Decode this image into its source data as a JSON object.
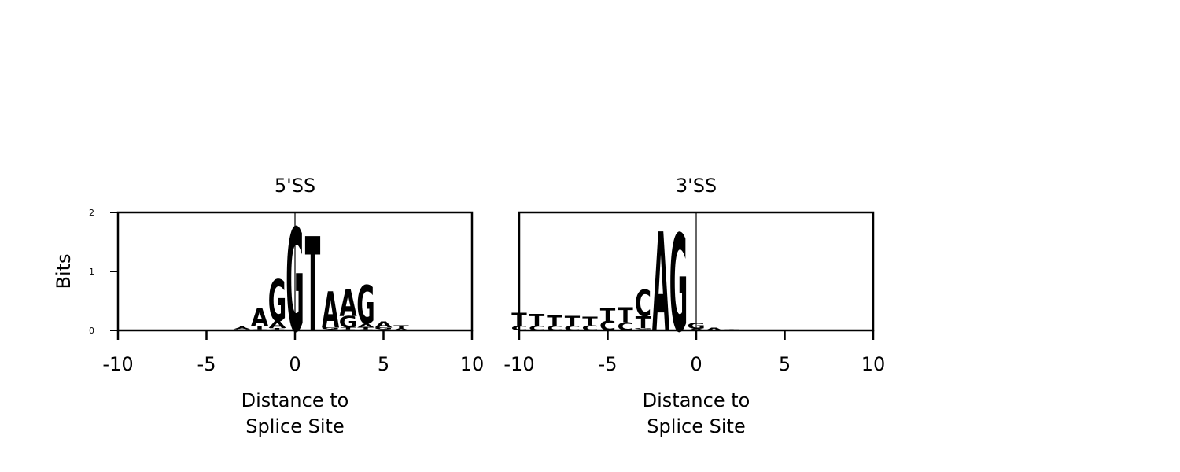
{
  "chart_data": [
    {
      "type": "sequence-logo",
      "title": "5'SS",
      "xlabel_lines": [
        "Distance to",
        "Splice Site"
      ],
      "ylabel": "Bits",
      "xlim": [
        -10,
        10
      ],
      "ylim": [
        0,
        2
      ],
      "xticks": [
        -10,
        -5,
        0,
        5,
        10
      ],
      "xtick_labels": [
        "-10",
        "-5",
        "0",
        "5",
        "10"
      ],
      "yticks": [
        0,
        1,
        2
      ],
      "ytick_labels": [
        "0",
        "1",
        "2"
      ],
      "splice_line_x": 0,
      "colors": {
        "A": "#2a7f5f",
        "C": "#2e5a94",
        "G": "#f4a830",
        "T": "#c0292f"
      },
      "positions": [
        {
          "x": -3,
          "stack": [
            [
              "C",
              0.02
            ],
            [
              "A",
              0.03
            ],
            [
              "T",
              0.03
            ]
          ]
        },
        {
          "x": -2,
          "stack": [
            [
              "G",
              0.02
            ],
            [
              "T",
              0.06
            ],
            [
              "A",
              0.3
            ]
          ]
        },
        {
          "x": -1,
          "stack": [
            [
              "C",
              0.02
            ],
            [
              "T",
              0.02
            ],
            [
              "A",
              0.12
            ],
            [
              "G",
              0.7
            ]
          ]
        },
        {
          "x": 0,
          "stack": [
            [
              "G",
              1.75
            ]
          ]
        },
        {
          "x": 1,
          "stack": [
            [
              "T",
              1.6
            ]
          ]
        },
        {
          "x": 2,
          "stack": [
            [
              "T",
              0.02
            ],
            [
              "G",
              0.03
            ],
            [
              "A",
              0.62
            ]
          ]
        },
        {
          "x": 3,
          "stack": [
            [
              "C",
              0.02
            ],
            [
              "T",
              0.03
            ],
            [
              "G",
              0.2
            ],
            [
              "A",
              0.45
            ]
          ]
        },
        {
          "x": 4,
          "stack": [
            [
              "C",
              0.02
            ],
            [
              "T",
              0.03
            ],
            [
              "A",
              0.07
            ],
            [
              "G",
              0.65
            ]
          ]
        },
        {
          "x": 5,
          "stack": [
            [
              "C",
              0.02
            ],
            [
              "G",
              0.03
            ],
            [
              "A",
              0.1
            ]
          ]
        },
        {
          "x": 6,
          "stack": [
            [
              "A",
              0.03
            ],
            [
              "T",
              0.06
            ]
          ]
        },
        {
          "x": 7,
          "stack": [
            [
              "T",
              0.01
            ],
            [
              "A",
              0.01
            ]
          ]
        },
        {
          "x": 8,
          "stack": [
            [
              "A",
              0.01
            ]
          ]
        },
        {
          "x": 9,
          "stack": [
            [
              "C",
              0.01
            ]
          ]
        }
      ]
    },
    {
      "type": "sequence-logo",
      "title": "3'SS",
      "xlabel_lines": [
        "Distance to",
        "Splice Site"
      ],
      "ylabel": "",
      "xlim": [
        -10,
        10
      ],
      "ylim": [
        0,
        2
      ],
      "xticks": [
        -10,
        -5,
        0,
        5,
        10
      ],
      "xtick_labels": [
        "-10",
        "-5",
        "0",
        "5",
        "10"
      ],
      "yticks": [],
      "ytick_labels": [],
      "splice_line_x": 0,
      "colors": {
        "A": "#2a7f5f",
        "C": "#2e5a94",
        "G": "#f4a830",
        "T": "#c0292f"
      },
      "positions": [
        {
          "x": -10,
          "stack": [
            [
              "C",
              0.08
            ],
            [
              "T",
              0.22
            ]
          ]
        },
        {
          "x": -9,
          "stack": [
            [
              "C",
              0.08
            ],
            [
              "T",
              0.2
            ]
          ]
        },
        {
          "x": -8,
          "stack": [
            [
              "C",
              0.08
            ],
            [
              "T",
              0.17
            ]
          ]
        },
        {
          "x": -7,
          "stack": [
            [
              "C",
              0.08
            ],
            [
              "T",
              0.16
            ]
          ]
        },
        {
          "x": -6,
          "stack": [
            [
              "C",
              0.09
            ],
            [
              "T",
              0.15
            ]
          ]
        },
        {
          "x": -5,
          "stack": [
            [
              "C",
              0.16
            ],
            [
              "T",
              0.22
            ]
          ]
        },
        {
          "x": -4,
          "stack": [
            [
              "C",
              0.14
            ],
            [
              "T",
              0.25
            ]
          ]
        },
        {
          "x": -3,
          "stack": [
            [
              "A",
              0.02
            ],
            [
              "G",
              0.02
            ],
            [
              "T",
              0.2
            ],
            [
              "C",
              0.45
            ]
          ]
        },
        {
          "x": -2,
          "stack": [
            [
              "A",
              1.68
            ]
          ]
        },
        {
          "x": -1,
          "stack": [
            [
              "G",
              1.65
            ]
          ]
        },
        {
          "x": 0,
          "stack": [
            [
              "A",
              0.03
            ],
            [
              "G",
              0.1
            ]
          ]
        },
        {
          "x": 1,
          "stack": [
            [
              "A",
              0.04
            ]
          ]
        },
        {
          "x": 2,
          "stack": [
            [
              "T",
              0.02
            ]
          ]
        }
      ]
    }
  ]
}
